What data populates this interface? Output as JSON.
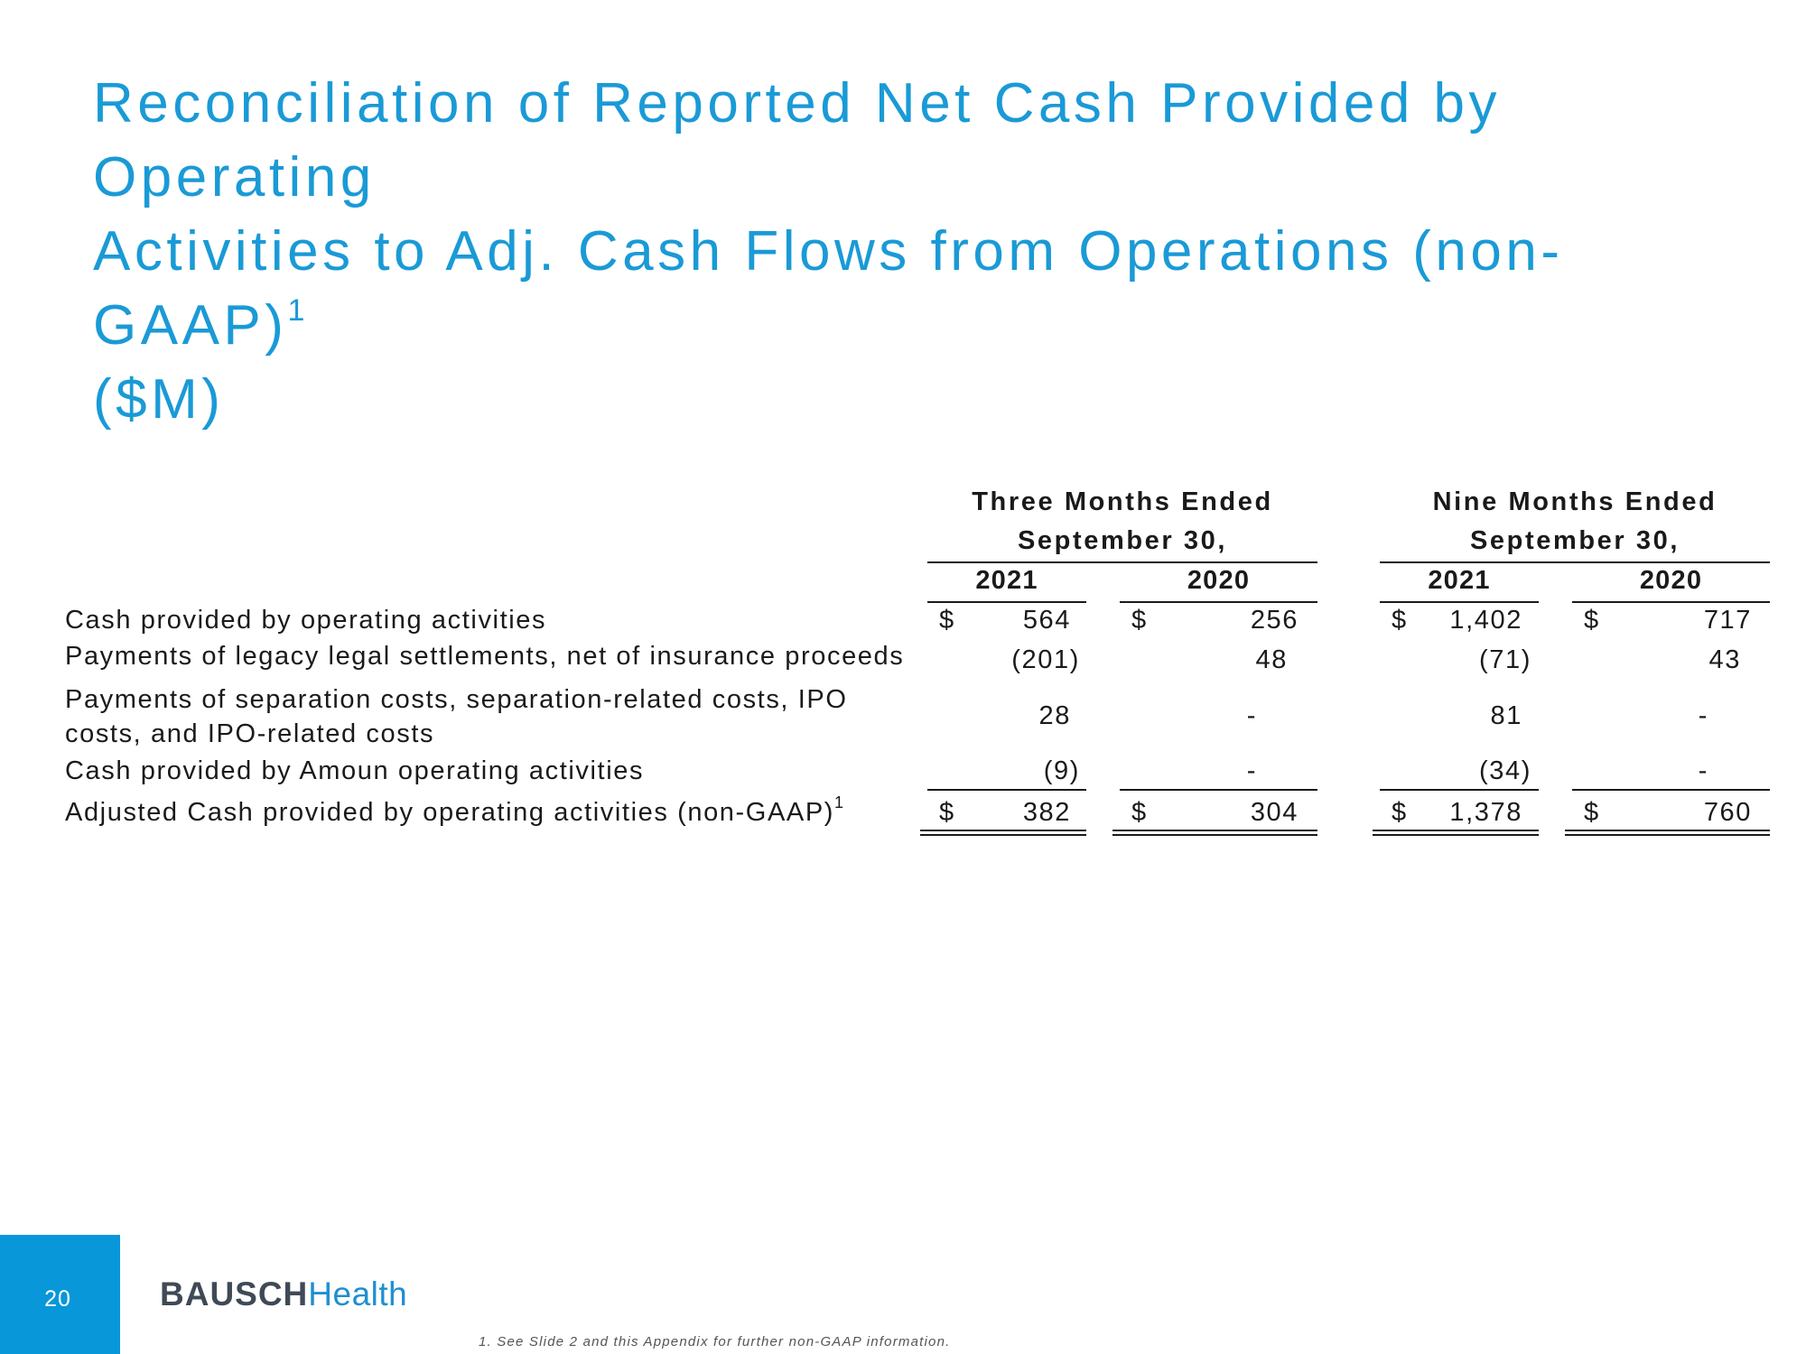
{
  "title": {
    "line1": "Reconciliation of Reported Net Cash Provided by Operating",
    "line2": "Activities to Adj. Cash Flows from Operations (non-GAAP)",
    "line2_sup": "1",
    "line3": "($M)"
  },
  "table": {
    "groups": [
      {
        "line1": "Three Months Ended",
        "line2": "September 30,"
      },
      {
        "line1": "Nine Months Ended",
        "line2": "September 30,"
      }
    ],
    "years": [
      "2021",
      "2020",
      "2021",
      "2020"
    ],
    "currency": "$",
    "rows": [
      {
        "label": "Cash provided by operating activities",
        "values": [
          "564",
          "256",
          "1,402",
          "717"
        ]
      },
      {
        "label": "Payments of legacy legal settlements, net of insurance proceeds",
        "values": [
          "(201)",
          "48",
          "(71)",
          "43"
        ]
      },
      {
        "label_line1": "Payments of separation costs, separation-related costs, IPO",
        "label_line2": "costs, and IPO-related costs",
        "values": [
          "28",
          "-",
          "81",
          "-"
        ]
      },
      {
        "label": "Cash provided by Amoun operating activities",
        "values": [
          "(9)",
          "-",
          "(34)",
          "-"
        ]
      },
      {
        "label": "Adjusted Cash provided by operating activities (non-GAAP)",
        "label_sup": "1",
        "values": [
          "382",
          "304",
          "1,378",
          "760"
        ]
      }
    ]
  },
  "footer": {
    "page_number": "20",
    "logo_part1": "BAUSCH",
    "logo_part2": "Health",
    "footnote": "1.  See Slide 2 and this Appendix for further non-GAAP information."
  },
  "colors": {
    "title": "#1a9ad6",
    "page_box": "#0897d8",
    "logo_dark": "#3f4a56",
    "logo_blue": "#1f8fd0"
  }
}
